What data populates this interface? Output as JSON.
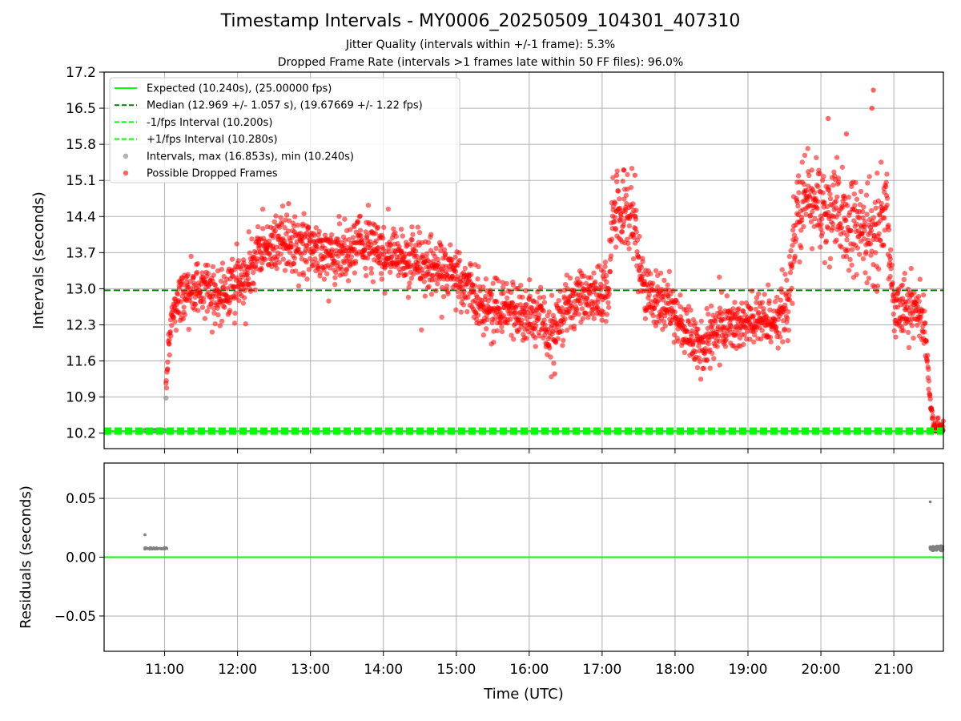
{
  "title": "Timestamp Intervals - MY0006_20250509_104301_407310",
  "subtitle_1": "Jitter Quality (intervals within +/-1 frame): 5.3%",
  "subtitle_2": "Dropped Frame Rate (intervals >1 frames late within 50 FF files): 96.0%",
  "colors": {
    "expected": "#00ff00",
    "median": "#008000",
    "interval_gray": "#808080",
    "dropped": "#ff0000",
    "grid": "#b0b0b0"
  },
  "chart_data": [
    {
      "type": "scatter",
      "name": "intervals",
      "xlabel": "Time (UTC)",
      "ylabel": "Intervals (seconds)",
      "x_range_hours": [
        10.17,
        21.68
      ],
      "ylim": [
        9.9,
        17.2
      ],
      "yticks": [
        10.2,
        10.9,
        11.6,
        12.3,
        13.0,
        13.7,
        14.4,
        15.1,
        15.8,
        16.5,
        17.2
      ],
      "ytick_labels": [
        "10.2",
        "10.9",
        "11.6",
        "12.3",
        "13.0",
        "13.7",
        "14.4",
        "15.1",
        "15.8",
        "16.5",
        "17.2"
      ],
      "xticks_hours": [
        11,
        12,
        13,
        14,
        15,
        16,
        17,
        18,
        19,
        20,
        21
      ],
      "grid": true,
      "legend_position": "top-left",
      "reference_lines": {
        "expected": 10.24,
        "median": 12.969,
        "minus_1fps": 10.2,
        "plus_1fps": 10.28
      },
      "legend": [
        "Expected (10.240s), (25.00000 fps)",
        "Median (12.969 +/- 1.057 s), (19.67669 +/- 1.22 fps)",
        "-1/fps Interval (10.200s)",
        "+1/fps Interval (10.280s)",
        "Intervals, max (16.853s), min (10.240s)",
        "Possible Dropped Frames"
      ],
      "interval_max": 16.853,
      "interval_min": 10.24,
      "normal_intervals": [
        {
          "time_hours": 10.73,
          "value": 10.26
        },
        {
          "time_hours": 10.8,
          "value": 10.25
        },
        {
          "time_hours": 10.87,
          "value": 10.25
        },
        {
          "time_hours": 10.94,
          "value": 10.25
        },
        {
          "time_hours": 11.0,
          "value": 10.25
        },
        {
          "time_hours": 11.02,
          "value": 10.88
        }
      ],
      "dropped_trend": [
        {
          "time_hours": 11.02,
          "value": 11.0
        },
        {
          "time_hours": 11.05,
          "value": 11.8
        },
        {
          "time_hours": 11.1,
          "value": 12.5
        },
        {
          "time_hours": 11.2,
          "value": 12.9
        },
        {
          "time_hours": 11.5,
          "value": 13.0
        },
        {
          "time_hours": 11.85,
          "value": 12.9
        },
        {
          "time_hours": 12.1,
          "value": 13.2
        },
        {
          "time_hours": 12.35,
          "value": 13.8
        },
        {
          "time_hours": 12.6,
          "value": 14.0
        },
        {
          "time_hours": 13.0,
          "value": 13.8
        },
        {
          "time_hours": 13.4,
          "value": 13.6
        },
        {
          "time_hours": 13.8,
          "value": 13.9
        },
        {
          "time_hours": 14.2,
          "value": 13.6
        },
        {
          "time_hours": 14.6,
          "value": 13.5
        },
        {
          "time_hours": 15.0,
          "value": 13.3
        },
        {
          "time_hours": 15.3,
          "value": 12.7
        },
        {
          "time_hours": 15.7,
          "value": 12.6
        },
        {
          "time_hours": 16.0,
          "value": 12.5
        },
        {
          "time_hours": 16.3,
          "value": 12.2
        },
        {
          "time_hours": 16.6,
          "value": 12.8
        },
        {
          "time_hours": 17.0,
          "value": 12.9
        },
        {
          "time_hours": 17.1,
          "value": 13.0
        },
        {
          "time_hours": 17.15,
          "value": 14.5
        },
        {
          "time_hours": 17.4,
          "value": 14.5
        },
        {
          "time_hours": 17.5,
          "value": 13.5
        },
        {
          "time_hours": 17.6,
          "value": 12.9
        },
        {
          "time_hours": 17.9,
          "value": 12.6
        },
        {
          "time_hours": 18.1,
          "value": 12.2
        },
        {
          "time_hours": 18.35,
          "value": 11.9
        },
        {
          "time_hours": 18.6,
          "value": 12.3
        },
        {
          "time_hours": 19.0,
          "value": 12.3
        },
        {
          "time_hours": 19.3,
          "value": 12.4
        },
        {
          "time_hours": 19.55,
          "value": 12.6
        },
        {
          "time_hours": 19.62,
          "value": 14.0
        },
        {
          "time_hours": 19.8,
          "value": 14.8
        },
        {
          "time_hours": 20.1,
          "value": 14.5
        },
        {
          "time_hours": 20.4,
          "value": 14.2
        },
        {
          "time_hours": 20.7,
          "value": 14.0
        },
        {
          "time_hours": 20.9,
          "value": 14.5
        },
        {
          "time_hours": 21.0,
          "value": 12.7
        },
        {
          "time_hours": 21.3,
          "value": 12.6
        },
        {
          "time_hours": 21.42,
          "value": 12.3
        },
        {
          "time_hours": 21.48,
          "value": 11.2
        },
        {
          "time_hours": 21.52,
          "value": 10.6
        },
        {
          "time_hours": 21.55,
          "value": 10.3
        },
        {
          "time_hours": 21.68,
          "value": 10.25
        }
      ],
      "dropped_outliers": [
        {
          "time_hours": 17.2,
          "value": 15.2
        },
        {
          "time_hours": 17.3,
          "value": 15.3
        },
        {
          "time_hours": 17.45,
          "value": 15.2
        },
        {
          "time_hours": 20.1,
          "value": 16.3
        },
        {
          "time_hours": 20.35,
          "value": 16.0
        },
        {
          "time_hours": 20.7,
          "value": 16.5
        },
        {
          "time_hours": 20.72,
          "value": 16.85
        },
        {
          "time_hours": 12.7,
          "value": 14.65
        },
        {
          "time_hours": 16.35,
          "value": 11.35
        }
      ]
    },
    {
      "type": "scatter",
      "name": "residuals",
      "xlabel": "Time (UTC)",
      "ylabel": "Residuals (seconds)",
      "x_range_hours": [
        10.17,
        21.68
      ],
      "ylim": [
        -0.08,
        0.08
      ],
      "yticks": [
        -0.05,
        0.0,
        0.05
      ],
      "ytick_labels": [
        "−0.05",
        "0.00",
        "0.05"
      ],
      "xticks_hours": [
        11,
        12,
        13,
        14,
        15,
        16,
        17,
        18,
        19,
        20,
        21
      ],
      "xtick_labels": [
        "11:00",
        "12:00",
        "13:00",
        "14:00",
        "15:00",
        "16:00",
        "17:00",
        "18:00",
        "19:00",
        "20:00",
        "21:00"
      ],
      "grid": true,
      "zero_line": 0.0,
      "points": [
        {
          "time_hours": 10.73,
          "value": 0.019
        },
        {
          "time_hours": 10.73,
          "value": 0.008
        },
        {
          "time_hours": 10.8,
          "value": 0.008
        },
        {
          "time_hours": 10.85,
          "value": 0.008
        },
        {
          "time_hours": 10.9,
          "value": 0.007
        },
        {
          "time_hours": 10.95,
          "value": 0.007
        },
        {
          "time_hours": 11.0,
          "value": 0.007
        },
        {
          "time_hours": 21.5,
          "value": 0.047
        },
        {
          "time_hours": 21.5,
          "value": 0.007
        },
        {
          "time_hours": 21.55,
          "value": 0.008
        },
        {
          "time_hours": 21.6,
          "value": 0.007
        },
        {
          "time_hours": 21.65,
          "value": 0.008
        }
      ]
    }
  ]
}
